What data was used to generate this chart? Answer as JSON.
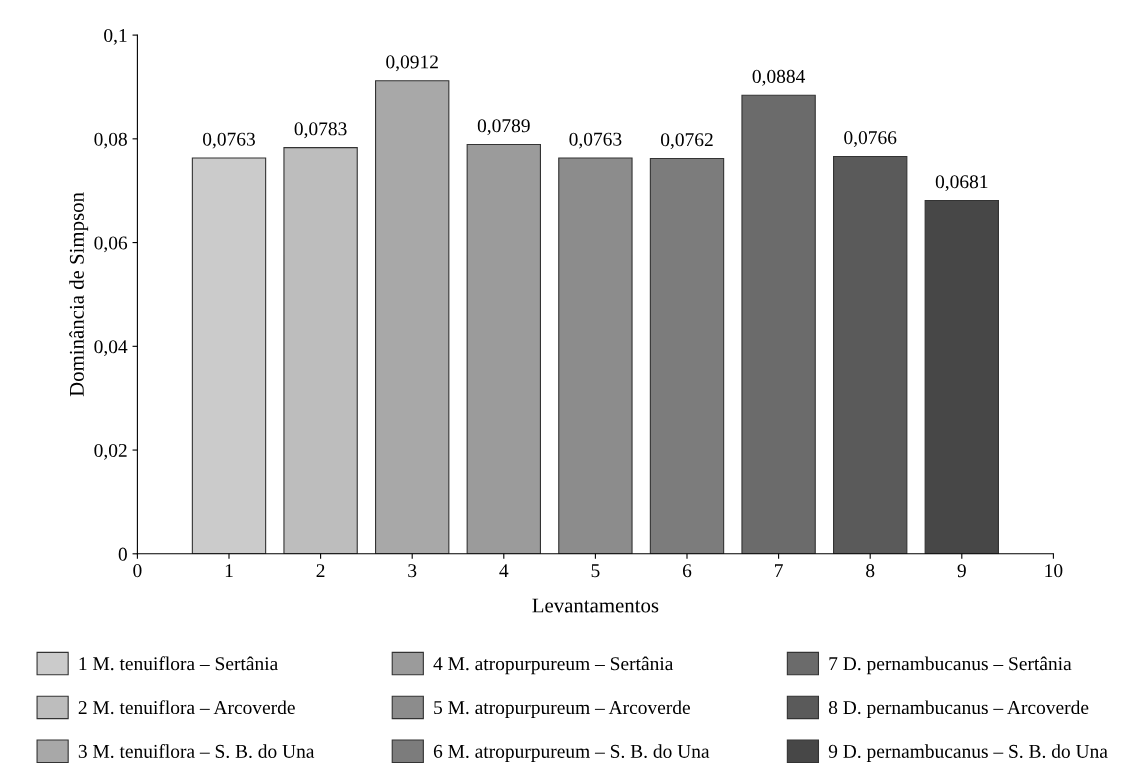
{
  "chart_data": {
    "type": "bar",
    "xlabel": "Levantamentos",
    "ylabel": "Dominância de Simpson",
    "xlim": [
      0,
      10
    ],
    "xticks": [
      0,
      1,
      2,
      3,
      4,
      5,
      6,
      7,
      8,
      9,
      10
    ],
    "ylim": [
      0,
      0.1
    ],
    "yticks": [
      0,
      {
        "value": 0.02,
        "label": "0,02"
      },
      {
        "value": 0.04,
        "label": "0,04"
      },
      {
        "value": 0.06,
        "label": "0,06"
      },
      {
        "value": 0.08,
        "label": "0,08"
      },
      {
        "value": 0.1,
        "label": "0,1"
      }
    ],
    "grid": false,
    "legend": "bottom",
    "series": [
      {
        "name": "1 M. tenuiflora – Sertânia",
        "color": "#cbcbcb",
        "x": [
          1
        ],
        "values": [
          0.0763
        ],
        "value_labels": [
          "0,0763"
        ]
      },
      {
        "name": "2 M. tenuiflora – Arcoverde",
        "color": "#bdbdbd",
        "x": [
          2
        ],
        "values": [
          0.0783
        ],
        "value_labels": [
          "0,0783"
        ]
      },
      {
        "name": "3 M. tenuiflora – S. B. do Una",
        "color": "#a8a8a8",
        "x": [
          3
        ],
        "values": [
          0.0912
        ],
        "value_labels": [
          "0,0912"
        ]
      },
      {
        "name": "4 M. atropurpureum – Sertânia",
        "color": "#9b9b9b",
        "x": [
          4
        ],
        "values": [
          0.0789
        ],
        "value_labels": [
          "0,0789"
        ]
      },
      {
        "name": "5 M. atropurpureum – Arcoverde",
        "color": "#8c8c8c",
        "x": [
          5
        ],
        "values": [
          0.0763
        ],
        "value_labels": [
          "0,0763"
        ]
      },
      {
        "name": "6 M. atropurpureum – S. B. do Una",
        "color": "#7c7c7c",
        "x": [
          6
        ],
        "values": [
          0.0762
        ],
        "value_labels": [
          "0,0762"
        ]
      },
      {
        "name": "7 D. pernambucanus – Sertânia",
        "color": "#6b6b6b",
        "x": [
          7
        ],
        "values": [
          0.0884
        ],
        "value_labels": [
          "0,0884"
        ]
      },
      {
        "name": "8 D. pernambucanus – Arcoverde",
        "color": "#5a5a5a",
        "x": [
          8
        ],
        "values": [
          0.0766
        ],
        "value_labels": [
          "0,0766"
        ]
      },
      {
        "name": "9 D. pernambucanus – S. B. do Una",
        "color": "#474747",
        "x": [
          9
        ],
        "values": [
          0.0681
        ],
        "value_labels": [
          "0,0681"
        ]
      }
    ]
  }
}
